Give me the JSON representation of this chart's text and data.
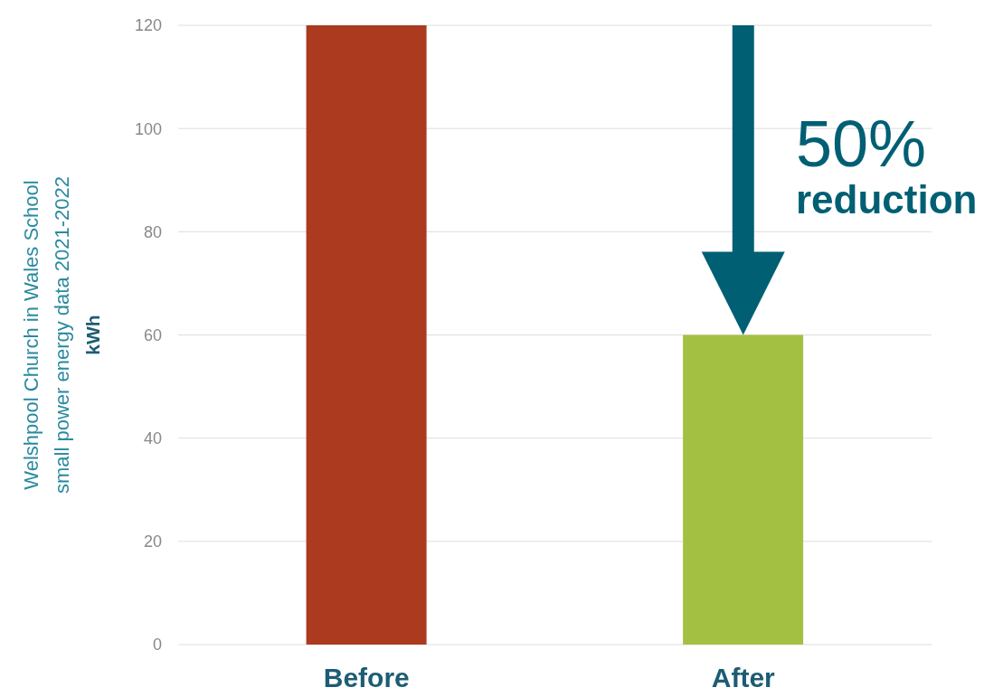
{
  "chart_data": {
    "type": "bar",
    "ylabel": "Welshpool Church in Wales School\nsmall power energy data 2021-2022\nkWh",
    "categories": [
      "Before",
      "After"
    ],
    "values": [
      120,
      60
    ],
    "colors": [
      "#ab3a1e",
      "#a3c043"
    ],
    "ylim": [
      0,
      120
    ],
    "yticks": [
      0,
      20,
      40,
      60,
      80,
      100,
      120
    ],
    "grid": "y",
    "annotations": [
      "50%",
      "reduction"
    ]
  }
}
